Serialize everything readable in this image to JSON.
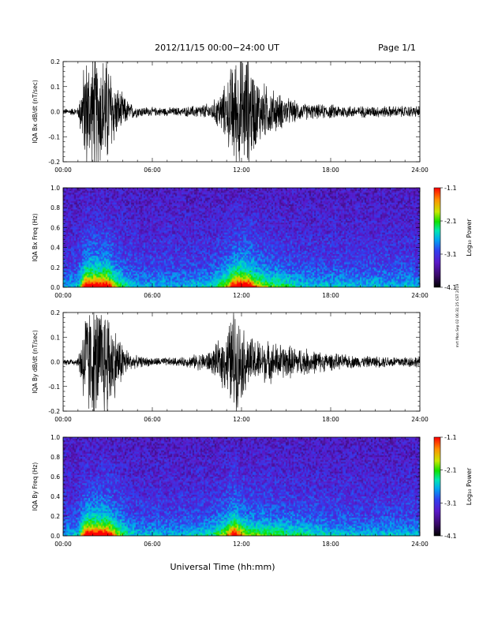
{
  "header": {
    "title": "2012/11/15  00:00−24:00 UT",
    "page": "Page 1/1"
  },
  "footer": {
    "xlabel": "Universal Time (hh:mm)"
  },
  "side_note": "mrt Mon Sep 02 06:31:25 CST 2019",
  "colors": {
    "trace": "#000000",
    "colormap": [
      "#000000",
      "#3a0a6a",
      "#5a18c8",
      "#3040f0",
      "#00a8f0",
      "#00e8b0",
      "#10e000",
      "#c8e800",
      "#ff9000",
      "#ff0000"
    ]
  },
  "chart_data": [
    {
      "type": "line",
      "title": "",
      "xlabel": "",
      "ylabel": "IQA Bx dB/dt (nT/sec)",
      "xlim": [
        "00:00",
        "24:00"
      ],
      "ylim": [
        -0.2,
        0.2
      ],
      "xticks": [
        "00:00",
        "06:00",
        "12:00",
        "18:00",
        "24:00"
      ],
      "yticks": [
        "-0.2",
        "-0.1",
        "0.0",
        "0.1",
        "0.2"
      ],
      "envelope_hours": [
        0,
        1,
        1.5,
        2,
        2.5,
        3,
        3.5,
        4,
        4.5,
        5,
        6,
        8,
        10,
        11,
        11.5,
        12,
        12.5,
        13,
        14,
        15,
        16,
        17,
        18,
        20,
        22,
        24
      ],
      "envelope_amplitude": [
        0.01,
        0.015,
        0.2,
        0.2,
        0.2,
        0.2,
        0.1,
        0.06,
        0.03,
        0.02,
        0.015,
        0.015,
        0.03,
        0.1,
        0.2,
        0.2,
        0.2,
        0.12,
        0.08,
        0.05,
        0.03,
        0.025,
        0.025,
        0.02,
        0.02,
        0.02
      ]
    },
    {
      "type": "heatmap",
      "title": "",
      "xlabel": "",
      "ylabel": "IQA Bx Freq (Hz)",
      "xlim": [
        "00:00",
        "24:00"
      ],
      "ylim": [
        0.0,
        1.0
      ],
      "xticks": [
        "00:00",
        "06:00",
        "12:00",
        "18:00",
        "24:00"
      ],
      "yticks": [
        "0.0",
        "0.2",
        "0.4",
        "0.6",
        "0.8",
        "1.0"
      ],
      "colorbar_label": "Log₁₀ Power",
      "colorbar_ticks": [
        "-1.1",
        "-2.1",
        "-3.1",
        "-4.1"
      ],
      "clim": [
        -4.1,
        -1.1
      ]
    },
    {
      "type": "line",
      "title": "",
      "xlabel": "",
      "ylabel": "IQA By dB/dt (nT/sec)",
      "xlim": [
        "00:00",
        "24:00"
      ],
      "ylim": [
        -0.2,
        0.2
      ],
      "xticks": [
        "00:00",
        "06:00",
        "12:00",
        "18:00",
        "24:00"
      ],
      "yticks": [
        "-0.2",
        "-0.1",
        "0.0",
        "0.1",
        "0.2"
      ],
      "envelope_hours": [
        0,
        1,
        1.5,
        2,
        2.5,
        3,
        3.5,
        4,
        4.5,
        5,
        6,
        8,
        10,
        11,
        11.5,
        12,
        12.5,
        13,
        14,
        15,
        16,
        17,
        18,
        20,
        22,
        24
      ],
      "envelope_amplitude": [
        0.01,
        0.015,
        0.2,
        0.2,
        0.2,
        0.2,
        0.12,
        0.07,
        0.03,
        0.02,
        0.015,
        0.015,
        0.04,
        0.11,
        0.2,
        0.13,
        0.09,
        0.08,
        0.07,
        0.06,
        0.05,
        0.04,
        0.03,
        0.02,
        0.02,
        0.02
      ]
    },
    {
      "type": "heatmap",
      "title": "",
      "xlabel": "",
      "ylabel": "IQA By Freq (Hz)",
      "xlim": [
        "00:00",
        "24:00"
      ],
      "ylim": [
        0.0,
        1.0
      ],
      "xticks": [
        "00:00",
        "06:00",
        "12:00",
        "18:00",
        "24:00"
      ],
      "yticks": [
        "0.0",
        "0.2",
        "0.4",
        "0.6",
        "0.8",
        "1.0"
      ],
      "colorbar_label": "Log₁₀ Power",
      "colorbar_ticks": [
        "-1.1",
        "-2.1",
        "-3.1",
        "-4.1"
      ],
      "clim": [
        -4.1,
        -1.1
      ]
    }
  ]
}
